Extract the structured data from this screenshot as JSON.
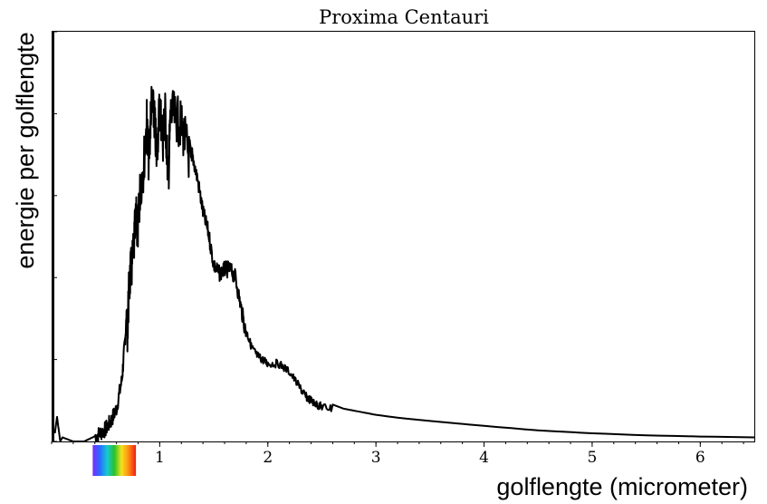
{
  "chart_data": {
    "type": "line",
    "title": "Proxima Centauri",
    "xlabel": "golflengte (micrometer)",
    "ylabel": "energie per golflengte",
    "xlim": [
      0.0,
      6.5
    ],
    "ylim": [
      0.0,
      1.0
    ],
    "x_ticks": [
      1,
      2,
      3,
      4,
      5,
      6
    ],
    "x_tick_labels": [
      "1",
      "2",
      "3",
      "4",
      "5",
      "6"
    ],
    "y_ticks_labeled": false,
    "visible_spectrum_bar": {
      "range": [
        0.38,
        0.78
      ],
      "colors": [
        "#7a2cff",
        "#2a6bff",
        "#15c8d4",
        "#29c12b",
        "#f4e21a",
        "#ff8a12",
        "#ee1c16"
      ]
    },
    "series": [
      {
        "x": [
          0.03,
          0.05,
          0.08,
          0.1,
          0.2,
          0.3,
          0.38,
          0.45,
          0.5,
          0.55,
          0.6,
          0.65,
          0.68,
          0.7,
          0.72,
          0.75,
          0.78,
          0.8,
          0.82,
          0.85,
          0.88,
          0.9,
          0.92,
          0.95,
          0.97,
          1.0,
          1.03,
          1.05,
          1.08,
          1.1,
          1.15,
          1.2,
          1.25,
          1.3,
          1.35,
          1.4,
          1.45,
          1.5,
          1.55,
          1.6,
          1.65,
          1.7,
          1.75,
          1.8,
          1.85,
          1.9,
          1.95,
          2.0,
          2.1,
          2.2,
          2.3,
          2.35,
          2.4,
          2.45,
          2.5,
          2.6,
          2.7,
          2.8,
          2.9,
          3.0,
          3.2,
          3.5,
          4.0,
          4.5,
          5.0,
          5.5,
          6.0,
          6.5
        ],
        "y": [
          0.02,
          0.06,
          0.0,
          0.01,
          0.0,
          0.0,
          0.01,
          0.02,
          0.03,
          0.05,
          0.08,
          0.15,
          0.25,
          0.33,
          0.45,
          0.5,
          0.6,
          0.58,
          0.68,
          0.73,
          0.84,
          0.74,
          0.88,
          0.85,
          0.76,
          0.88,
          0.8,
          0.86,
          0.7,
          0.86,
          0.85,
          0.83,
          0.78,
          0.72,
          0.66,
          0.58,
          0.53,
          0.45,
          0.43,
          0.44,
          0.44,
          0.42,
          0.35,
          0.28,
          0.24,
          0.22,
          0.21,
          0.2,
          0.2,
          0.18,
          0.14,
          0.12,
          0.11,
          0.1,
          0.095,
          0.09,
          0.08,
          0.075,
          0.07,
          0.065,
          0.058,
          0.05,
          0.038,
          0.027,
          0.02,
          0.015,
          0.012,
          0.01
        ]
      }
    ]
  }
}
